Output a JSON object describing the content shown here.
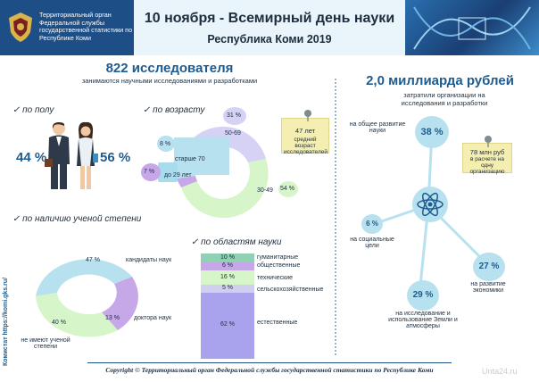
{
  "header": {
    "org": "Территориальный орган Федеральной службы государственной статистики по Республике Коми",
    "title": "10 ноября - Всемирный день науки",
    "subtitle": "Республика Коми 2019"
  },
  "researchers": {
    "headline": "822 исследователя",
    "caption": "занимаются научными исследованиями и разработками"
  },
  "gender": {
    "title": "✓ по полу",
    "male": "44 %",
    "female": "56 %"
  },
  "age": {
    "title": "✓ по возрасту",
    "segments": [
      {
        "label": "50-69",
        "pct": "31 %",
        "value": 31
      },
      {
        "label": "30-49",
        "pct": "54 %",
        "value": 54
      },
      {
        "label": "до 29 лет",
        "pct": "7 %",
        "value": 7
      },
      {
        "label": "старше 70",
        "pct": "8 %",
        "value": 8
      }
    ],
    "note_age": "47 лет",
    "note_text": "средний возраст исследователей"
  },
  "degree": {
    "title": "✓ по наличию ученой степени",
    "segments": [
      {
        "label": "кандидаты наук",
        "pct": "47 %",
        "value": 47
      },
      {
        "label": "доктора наук",
        "pct": "13 %",
        "value": 13
      },
      {
        "label": "не имеют ученой степени",
        "pct": "40 %",
        "value": 40
      }
    ]
  },
  "fields": {
    "title": "✓ по областям науки",
    "items": [
      {
        "label": "гуманитарные",
        "pct": "10 %",
        "value": 10,
        "color": "#8fd1b2"
      },
      {
        "label": "общественные",
        "pct": "6 %",
        "value": 6,
        "color": "#c6a7e8"
      },
      {
        "label": "технические",
        "pct": "16 %",
        "value": 16,
        "color": "#d6f5c8"
      },
      {
        "label": "сельскохозяйственные",
        "pct": "5 %",
        "value": 5,
        "color": "#d0d0ee"
      },
      {
        "label": "естественные",
        "pct": "62 %",
        "value": 62,
        "color": "#a9a3ee"
      }
    ]
  },
  "costs": {
    "headline": "2,0 миллиарда рублей",
    "caption": "затратили организации на исследования и разработки",
    "note_value": "78 млн руб",
    "note_text": "в расчете на одну организацию",
    "items": [
      {
        "pct": "38 %",
        "label": "на общее развитие науки"
      },
      {
        "pct": "6 %",
        "label": "на социальные цели"
      },
      {
        "pct": "29 %",
        "label": "на исследование и использование Земли и атмосферы"
      },
      {
        "pct": "27 %",
        "label": "на развитие экономики"
      }
    ]
  },
  "footer": "Copyright © Территориальный орган Федеральной службы государственной статистики по Республике Коми",
  "sidebar_link": "Комистат https://komi.gks.ru/",
  "watermark": "Unta24.ru",
  "colors": {
    "navy": "#1d4e86",
    "accent_blue": "#1e5b8e",
    "light_blue": "#b8e1ef",
    "lilac": "#d6d2f5",
    "mint": "#d6f5c8",
    "purple": "#c6a7e8",
    "note_yellow": "#f4eeb0"
  }
}
